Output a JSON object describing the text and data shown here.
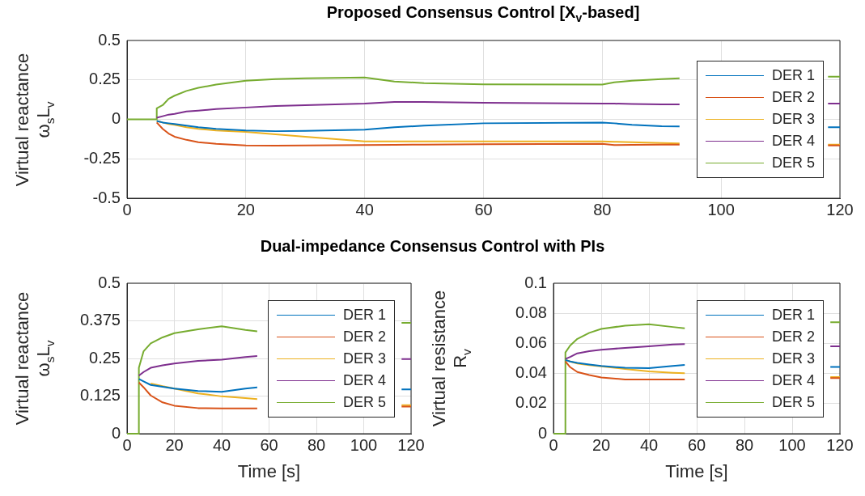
{
  "chart_data": [
    {
      "type": "line",
      "title": "Proposed Consensus Control [X$_{v}$-based]",
      "ylabel": "Virtual reactance\nω$_{s}$L$_{v}$",
      "xlim": [
        0,
        120
      ],
      "xticks": [
        0,
        20,
        40,
        60,
        80,
        100,
        120
      ],
      "ylim": [
        -0.5,
        0.5
      ],
      "yticks": [
        -0.5,
        -0.25,
        0,
        0.25,
        0.5
      ],
      "grid": true,
      "legend": "right",
      "x": [
        0,
        5,
        5,
        6,
        7,
        8,
        10,
        12,
        15,
        20,
        25,
        30,
        40,
        45,
        50,
        60,
        80,
        82,
        85,
        90,
        93,
        105,
        118,
        120
      ],
      "series": [
        {
          "name": "DER 1",
          "color": "#0072bd",
          "values": [
            null,
            null,
            -0.01,
            -0.02,
            -0.025,
            -0.03,
            -0.04,
            -0.05,
            -0.06,
            -0.07,
            -0.075,
            -0.073,
            -0.065,
            -0.05,
            -0.04,
            -0.025,
            -0.02,
            -0.025,
            -0.035,
            -0.043,
            -0.045,
            null,
            -0.05,
            -0.05
          ]
        },
        {
          "name": "DER 2",
          "color": "#d95319",
          "values": [
            null,
            null,
            -0.02,
            -0.06,
            -0.09,
            -0.11,
            -0.13,
            -0.145,
            -0.155,
            -0.165,
            -0.167,
            -0.166,
            -0.163,
            -0.162,
            -0.16,
            -0.158,
            -0.155,
            -0.163,
            -0.162,
            -0.16,
            -0.16,
            null,
            -0.165,
            -0.165
          ]
        },
        {
          "name": "DER 3",
          "color": "#edb120",
          "values": [
            null,
            null,
            -0.01,
            -0.02,
            -0.03,
            -0.035,
            -0.05,
            -0.06,
            -0.07,
            -0.08,
            -0.095,
            -0.11,
            -0.14,
            -0.14,
            -0.14,
            -0.14,
            -0.14,
            -0.142,
            -0.145,
            -0.15,
            -0.152,
            null,
            -0.16,
            -0.16
          ]
        },
        {
          "name": "DER 4",
          "color": "#7e2f8e",
          "values": [
            null,
            null,
            0.01,
            0.02,
            0.03,
            0.035,
            0.05,
            0.055,
            0.065,
            0.075,
            0.085,
            0.09,
            0.1,
            0.11,
            0.11,
            0.105,
            0.1,
            0.1,
            0.097,
            0.095,
            0.095,
            null,
            0.1,
            0.1
          ]
        },
        {
          "name": "DER 5",
          "color": "#77ac30",
          "values": [
            0,
            0,
            0.07,
            0.09,
            0.13,
            0.15,
            0.18,
            0.2,
            0.22,
            0.245,
            0.255,
            0.26,
            0.265,
            0.24,
            0.23,
            0.222,
            0.22,
            0.235,
            0.245,
            0.255,
            0.26,
            null,
            0.27,
            0.27
          ]
        }
      ]
    },
    {
      "type": "line",
      "title": "Dual-impedance Consensus Control with PIs",
      "ylabel": "Virtual reactance\nω$_{s}$L$_{v}$",
      "xlabel": "Time [s]",
      "xlim": [
        0,
        120
      ],
      "xticks": [
        0,
        20,
        40,
        60,
        80,
        100,
        120
      ],
      "ylim": [
        0,
        0.5
      ],
      "yticks": [
        0,
        0.125,
        0.25,
        0.375,
        0.5
      ],
      "grid": true,
      "legend": "right",
      "x": [
        0,
        5,
        5,
        7,
        10,
        15,
        20,
        30,
        40,
        50,
        55,
        85,
        116,
        120
      ],
      "series": [
        {
          "name": "DER 1",
          "color": "#0072bd",
          "values": [
            null,
            null,
            0.182,
            0.174,
            0.162,
            0.156,
            0.15,
            0.142,
            0.139,
            0.15,
            0.154,
            null,
            0.147,
            0.147
          ]
        },
        {
          "name": "DER 2",
          "color": "#d95319",
          "values": [
            null,
            null,
            0.17,
            0.154,
            0.127,
            0.104,
            0.093,
            0.085,
            0.084,
            0.084,
            0.084,
            null,
            0.09,
            0.09
          ]
        },
        {
          "name": "DER 3",
          "color": "#edb120",
          "values": [
            null,
            null,
            null,
            null,
            0.167,
            0.158,
            0.15,
            0.134,
            0.124,
            0.118,
            0.115,
            null,
            0.095,
            0.095
          ]
        },
        {
          "name": "DER 4",
          "color": "#7e2f8e",
          "values": [
            null,
            null,
            0.193,
            0.205,
            0.219,
            0.227,
            0.233,
            0.242,
            0.246,
            0.255,
            0.258,
            null,
            0.248,
            0.248
          ]
        },
        {
          "name": "DER 5",
          "color": "#77ac30",
          "values": [
            0,
            0,
            0.219,
            0.274,
            0.3,
            0.32,
            0.334,
            0.347,
            0.357,
            0.345,
            0.34,
            null,
            0.368,
            0.368
          ]
        }
      ]
    },
    {
      "type": "line",
      "ylabel": "Virtual resistance\nR$_{v}$",
      "xlabel": "Time [s]",
      "xlim": [
        0,
        120
      ],
      "xticks": [
        0,
        20,
        40,
        60,
        80,
        100,
        120
      ],
      "ylim": [
        0,
        0.1
      ],
      "yticks": [
        0,
        0.02,
        0.04,
        0.06,
        0.08,
        0.1
      ],
      "grid": true,
      "legend": "right",
      "x": [
        0,
        5,
        5,
        7,
        10,
        15,
        20,
        30,
        40,
        50,
        55,
        85,
        116,
        120
      ],
      "series": [
        {
          "name": "DER 1",
          "color": "#0072bd",
          "values": [
            null,
            null,
            0.049,
            0.048,
            0.047,
            0.046,
            0.045,
            0.0438,
            0.0435,
            0.045,
            0.0457,
            null,
            0.0444,
            0.0444
          ]
        },
        {
          "name": "DER 2",
          "color": "#d95319",
          "values": [
            null,
            null,
            0.048,
            0.0442,
            0.041,
            0.039,
            0.0374,
            0.036,
            0.036,
            0.036,
            0.036,
            null,
            0.037,
            0.037
          ]
        },
        {
          "name": "DER 3",
          "color": "#edb120",
          "values": [
            null,
            null,
            0.049,
            0.048,
            0.0466,
            0.0455,
            0.0448,
            0.043,
            0.0414,
            0.0405,
            0.0402,
            null,
            0.0376,
            0.0376
          ]
        },
        {
          "name": "DER 4",
          "color": "#7e2f8e",
          "values": [
            null,
            null,
            0.0497,
            0.051,
            0.0534,
            0.0548,
            0.0558,
            0.057,
            0.058,
            0.0593,
            0.0595,
            null,
            0.058,
            0.058
          ]
        },
        {
          "name": "DER 5",
          "color": "#77ac30",
          "values": [
            0,
            0,
            0.054,
            0.0586,
            0.063,
            0.067,
            0.0696,
            0.0718,
            0.0727,
            0.0709,
            0.07,
            null,
            0.074,
            0.074
          ]
        }
      ]
    }
  ]
}
